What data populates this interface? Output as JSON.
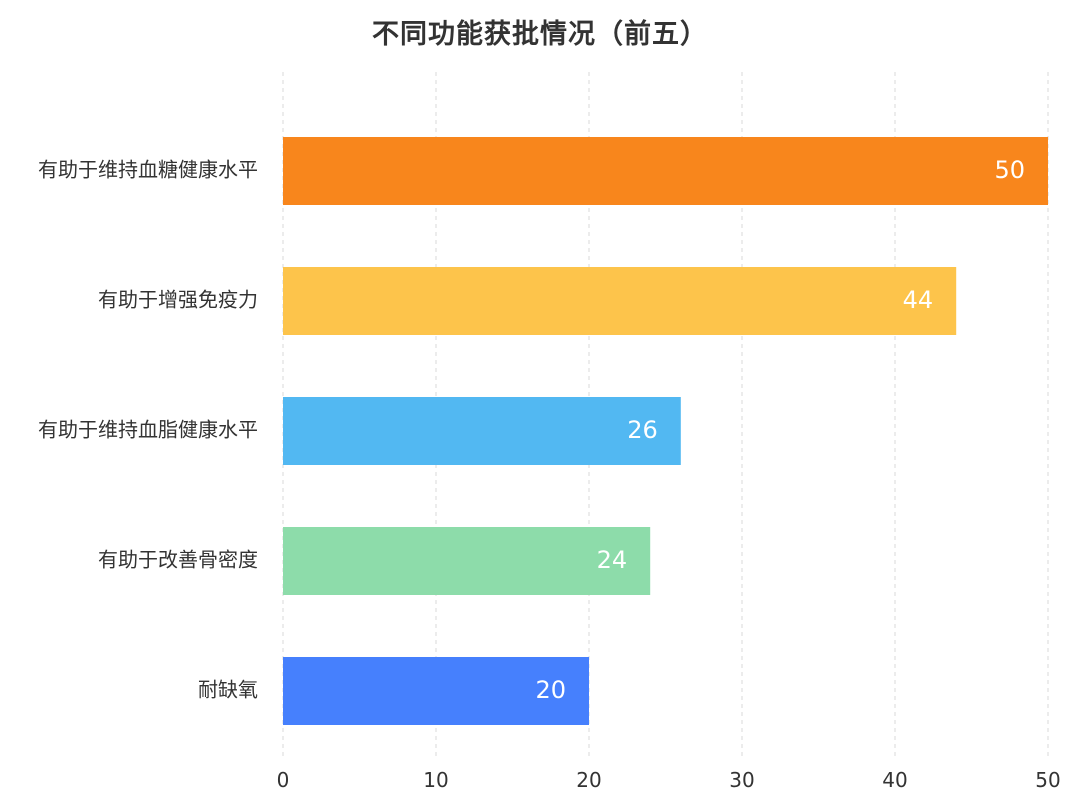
{
  "chart_data": {
    "type": "bar",
    "orientation": "horizontal",
    "title": "不同功能获批情况（前五）",
    "categories": [
      "有助于维持血糖健康水平",
      "有助于增强免疫力",
      "有助于维持血脂健康水平",
      "有助于改善骨密度",
      "耐缺氧"
    ],
    "values": [
      50,
      44,
      26,
      24,
      20
    ],
    "colors": [
      "#f8861c",
      "#fdc44b",
      "#52b8f2",
      "#8ddcaa",
      "#4680fd"
    ],
    "xlim": [
      0,
      50
    ],
    "xticks": [
      0,
      10,
      20,
      30,
      40,
      50
    ],
    "xlabel": "",
    "ylabel": "",
    "grid": "vertical-dashed",
    "data_labels": "inside-end"
  }
}
